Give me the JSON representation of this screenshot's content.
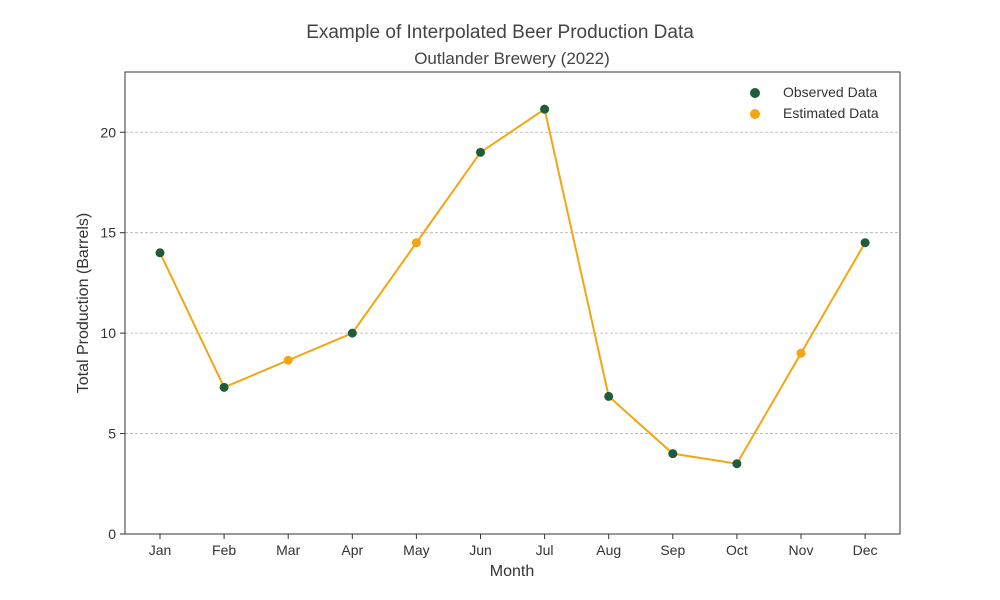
{
  "chart_data": {
    "type": "line",
    "title": "Example of Interpolated Beer Production Data",
    "subtitle": "Outlander Brewery (2022)",
    "xlabel": "Month",
    "ylabel": "Total Production (Barrels)",
    "categories": [
      "Jan",
      "Feb",
      "Mar",
      "Apr",
      "May",
      "Jun",
      "Jul",
      "Aug",
      "Sep",
      "Oct",
      "Nov",
      "Dec"
    ],
    "values": [
      14.0,
      7.3,
      8.65,
      10.0,
      14.5,
      19.0,
      21.15,
      6.85,
      4.0,
      3.5,
      9.0,
      14.5
    ],
    "point_types": [
      "observed",
      "observed",
      "estimated",
      "observed",
      "estimated",
      "observed",
      "observed",
      "observed",
      "observed",
      "observed",
      "estimated",
      "observed"
    ],
    "ylim": [
      0,
      23
    ],
    "yticks": [
      0,
      5,
      10,
      15,
      20
    ],
    "grid": "horizontal dashed",
    "legend_position": "top-right",
    "legend": [
      {
        "label": "Observed Data",
        "color": "#1f5c3a"
      },
      {
        "label": "Estimated Data",
        "color": "#f5a511"
      }
    ],
    "line_color": "#f5a511"
  }
}
